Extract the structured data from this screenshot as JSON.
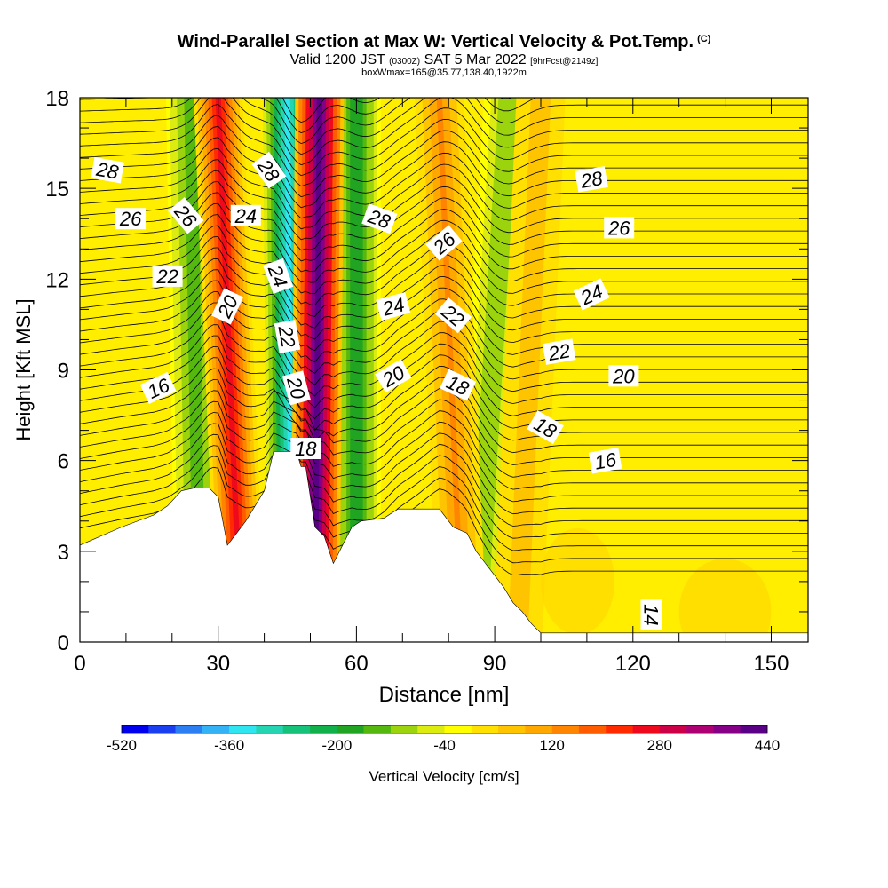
{
  "title": {
    "main": "Wind-Parallel Section at Max W: Vertical Velocity & Pot.Temp.",
    "copyright": "(C)",
    "valid_prefix": "Valid 1200 JST",
    "valid_utc": "(0300Z)",
    "valid_suffix": "SAT 5 Mar 2022",
    "forecast": "[9hrFcst@2149z]",
    "boxwmax": "boxWmax=165@35.77,138.40,1922m"
  },
  "colorbar": {
    "label": "Vertical Velocity [cm/s]",
    "tick_labels": [
      "-520",
      "-360",
      "-200",
      "-40",
      "120",
      "280",
      "440"
    ],
    "colors": [
      "#0000ee",
      "#1a3ff0",
      "#2b7ff2",
      "#33b2f5",
      "#2ee5f0",
      "#25d4b0",
      "#16c27a",
      "#11b04b",
      "#20a422",
      "#55b80f",
      "#9bd40c",
      "#dceb10",
      "#ffff00",
      "#ffe000",
      "#ffc400",
      "#ffa800",
      "#ff8400",
      "#ff5c00",
      "#ff2a00",
      "#ee0a1c",
      "#cc0046",
      "#ad0072",
      "#850086",
      "#5a0086"
    ]
  },
  "chart_data": {
    "type": "heatmap",
    "title": "Wind-Parallel Section at Max W: Vertical Velocity & Pot.Temp.",
    "xlabel": "Distance [nm]",
    "ylabel": "Height [Kft MSL]",
    "xlim": [
      0,
      158
    ],
    "ylim": [
      0,
      18
    ],
    "x_ticks": [
      0,
      30,
      60,
      90,
      120,
      150
    ],
    "y_ticks": [
      0,
      3,
      6,
      9,
      12,
      15,
      18
    ],
    "value_field": "vertical velocity (cm/s)",
    "value_range": [
      -520,
      440
    ],
    "updraft_bands": [
      {
        "x_bottom": 51,
        "x_top": 52,
        "peak": 440
      },
      {
        "x_bottom": 35,
        "x_top": 30,
        "peak": 240
      },
      {
        "x_bottom": 83,
        "x_top": 78,
        "peak": 120
      },
      {
        "x_bottom": 95,
        "x_top": 100,
        "peak": 60
      }
    ],
    "downdraft_bands": [
      {
        "x_bottom": 46,
        "x_top": 45,
        "peak": -360
      },
      {
        "x_bottom": 26,
        "x_top": 24,
        "peak": -160
      },
      {
        "x_bottom": 60,
        "x_top": 60,
        "peak": -200
      },
      {
        "x_bottom": 86,
        "x_top": 93,
        "peak": -120
      }
    ],
    "terrain": [
      [
        0,
        3.2
      ],
      [
        3,
        3.4
      ],
      [
        6,
        3.6
      ],
      [
        9,
        3.8
      ],
      [
        16,
        4.2
      ],
      [
        19,
        4.5
      ],
      [
        22,
        5.0
      ],
      [
        25,
        5.1
      ],
      [
        28,
        5.1
      ],
      [
        30,
        4.8
      ],
      [
        32,
        3.2
      ],
      [
        34,
        3.6
      ],
      [
        36,
        4.0
      ],
      [
        38,
        4.5
      ],
      [
        40,
        5.0
      ],
      [
        42,
        6.3
      ],
      [
        47,
        6.3
      ],
      [
        48,
        5.8
      ],
      [
        49,
        5.8
      ],
      [
        51,
        3.8
      ],
      [
        53,
        3.5
      ],
      [
        55,
        2.6
      ],
      [
        57,
        3.2
      ],
      [
        59,
        3.8
      ],
      [
        61,
        4.0
      ],
      [
        66,
        4.1
      ],
      [
        69,
        4.4
      ],
      [
        78,
        4.4
      ],
      [
        81,
        3.8
      ],
      [
        84,
        3.6
      ],
      [
        86,
        3.0
      ],
      [
        88,
        2.6
      ],
      [
        90,
        2.2
      ],
      [
        92,
        1.8
      ],
      [
        94,
        1.3
      ],
      [
        96,
        1.0
      ],
      [
        98,
        0.6
      ],
      [
        100,
        0.3
      ],
      [
        102,
        0.3
      ],
      [
        106,
        0.3
      ],
      [
        158,
        0.3
      ]
    ],
    "isentrope_labels": [
      {
        "text": "28",
        "x": 6,
        "y": 15.6,
        "angle": 10
      },
      {
        "text": "26",
        "x": 11,
        "y": 14.0,
        "angle": 0
      },
      {
        "text": "22",
        "x": 19,
        "y": 12.1,
        "angle": 0
      },
      {
        "text": "16",
        "x": 17,
        "y": 8.4,
        "angle": -25
      },
      {
        "text": "26",
        "x": 23,
        "y": 14.1,
        "angle": 50
      },
      {
        "text": "24",
        "x": 36,
        "y": 14.1,
        "angle": 0
      },
      {
        "text": "20",
        "x": 32,
        "y": 11.1,
        "angle": -65
      },
      {
        "text": "28",
        "x": 41,
        "y": 15.6,
        "angle": 55
      },
      {
        "text": "24",
        "x": 43,
        "y": 12.1,
        "angle": 70
      },
      {
        "text": "22",
        "x": 45,
        "y": 10.1,
        "angle": 80
      },
      {
        "text": "20",
        "x": 47,
        "y": 8.4,
        "angle": 75
      },
      {
        "text": "18",
        "x": 49,
        "y": 6.4,
        "angle": 0
      },
      {
        "text": "28",
        "x": 65,
        "y": 14.0,
        "angle": 20
      },
      {
        "text": "24",
        "x": 68,
        "y": 11.1,
        "angle": -15
      },
      {
        "text": "20",
        "x": 68,
        "y": 8.8,
        "angle": -30
      },
      {
        "text": "26",
        "x": 79,
        "y": 13.2,
        "angle": -40
      },
      {
        "text": "22",
        "x": 81,
        "y": 10.8,
        "angle": 40
      },
      {
        "text": "18",
        "x": 82,
        "y": 8.5,
        "angle": 25
      },
      {
        "text": "22",
        "x": 104,
        "y": 9.6,
        "angle": -10
      },
      {
        "text": "18",
        "x": 101,
        "y": 7.1,
        "angle": 30
      },
      {
        "text": "28",
        "x": 111,
        "y": 15.3,
        "angle": -10
      },
      {
        "text": "26",
        "x": 117,
        "y": 13.7,
        "angle": 0
      },
      {
        "text": "24",
        "x": 111,
        "y": 11.5,
        "angle": -25
      },
      {
        "text": "20",
        "x": 118,
        "y": 8.8,
        "angle": 0
      },
      {
        "text": "16",
        "x": 114,
        "y": 6.0,
        "angle": -10
      },
      {
        "text": "14",
        "x": 124,
        "y": 0.9,
        "angle": 90
      }
    ]
  }
}
